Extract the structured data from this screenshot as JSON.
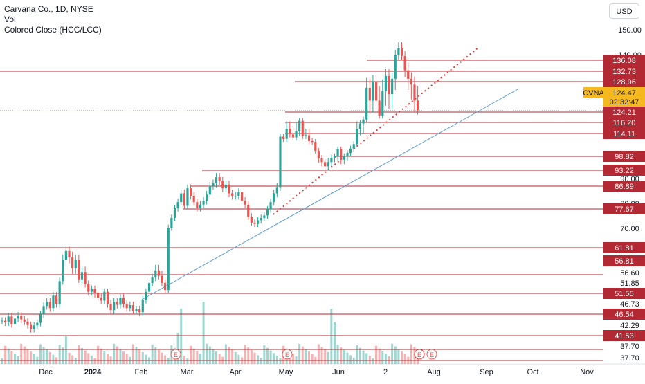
{
  "legend": {
    "title": "Carvana Co., 1D, NYSE",
    "line2": "Vol",
    "line3": "Colored Close (HCC/LCC)"
  },
  "currency": "USD",
  "colors": {
    "up": "#26a69a",
    "down": "#ef5350",
    "level": "#b22833",
    "trendline": "#5b9bd5",
    "dotted": "#e53935",
    "current": "#f5b81e",
    "tick": "#131722"
  },
  "chart_data": {
    "type": "candlestick",
    "symbol": "CVNA",
    "x_tick_labels": [
      "Dec",
      "2024",
      "Feb",
      "Mar",
      "Apr",
      "May",
      "Jun",
      "2",
      "Aug",
      "Sep",
      "Oct",
      "Nov"
    ],
    "y_tick_labels": [
      "150.00",
      "140.00",
      "90.00",
      "80.00",
      "70.00",
      "56.60",
      "51.85",
      "46.73",
      "42.29",
      "37.70",
      "37.70"
    ],
    "price_labels": [
      {
        "text": "136.08",
        "value": 136.08,
        "style": "level"
      },
      {
        "text": "132.73",
        "value": 132.73,
        "style": "level"
      },
      {
        "text": "128.96",
        "value": 128.96,
        "style": "level"
      },
      {
        "text": "124.47",
        "value": 124.47,
        "style": "current",
        "symbol": "CVNA",
        "countdown": "02:32:47"
      },
      {
        "text": "124.21",
        "value": 124.21,
        "style": "level"
      },
      {
        "text": "116.20",
        "value": 116.2,
        "style": "level"
      },
      {
        "text": "114.11",
        "value": 114.11,
        "style": "level"
      },
      {
        "text": "98.82",
        "value": 98.82,
        "style": "level"
      },
      {
        "text": "93.22",
        "value": 93.22,
        "style": "level"
      },
      {
        "text": "86.89",
        "value": 86.89,
        "style": "level"
      },
      {
        "text": "77.67",
        "value": 77.67,
        "style": "level"
      },
      {
        "text": "61.81",
        "value": 61.81,
        "style": "level"
      },
      {
        "text": "56.81",
        "value": 56.81,
        "style": "level"
      },
      {
        "text": "51.55",
        "value": 51.55,
        "style": "level"
      },
      {
        "text": "46.54",
        "value": 46.54,
        "style": "level"
      },
      {
        "text": "41.53",
        "value": 41.53,
        "style": "level"
      }
    ],
    "earnings_markers": 5,
    "series": [
      {
        "close": [
          45.0,
          44.6,
          46.0,
          44.2,
          45.5,
          46.2,
          45.3,
          44.8,
          44.0,
          43.0,
          43.9,
          44.5,
          46.5,
          48.5,
          49.5,
          48.0,
          51.0,
          49.0,
          55.0,
          59.5,
          61.2,
          60.0,
          58.0,
          59.5,
          55.5,
          57.3,
          54.2,
          52.0,
          52.8,
          51.5,
          50.5,
          49.8,
          52.0,
          49.0,
          47.5,
          49.5,
          48.8,
          50.5,
          49.0,
          48.0,
          48.7,
          47.3,
          47.7,
          47.0,
          50.0,
          52.0,
          54.5,
          56.0,
          57.6,
          56.5,
          54.5,
          52.5,
          70.0,
          74.0,
          78.0,
          80.5,
          84.0,
          79.0,
          86.0,
          83.0,
          80.5,
          78.0,
          79.5,
          81.0,
          83.5,
          87.0,
          88.0,
          90.5,
          89.0,
          86.0,
          87.5,
          84.0,
          83.0,
          83.0,
          84.5,
          81.0,
          79.5,
          74.5,
          72.0,
          71.5,
          73.0,
          74.0,
          75.0,
          77.5,
          80.5,
          84.0,
          86.5,
          112.0,
          110.5,
          115.0,
          113.5,
          111.5,
          114.5,
          117.5,
          112.5,
          113.0,
          109.0,
          108.5,
          102.5,
          98.0,
          96.5,
          94.8,
          96.5,
          98.2,
          99.0,
          103.5,
          97.5,
          99.0,
          101.0,
          104.0,
          107.0,
          115.0,
          116.0,
          118.5,
          128.0,
          126.0,
          129.0,
          126.0,
          121.5,
          127.5,
          131.0,
          127.0,
          130.0,
          139.0,
          142.0,
          138.5,
          133.0,
          130.0,
          128.5,
          126.0,
          124.5
        ]
      }
    ],
    "ylim": [
      36,
      152
    ],
    "grid": false,
    "legend": "top-left"
  }
}
